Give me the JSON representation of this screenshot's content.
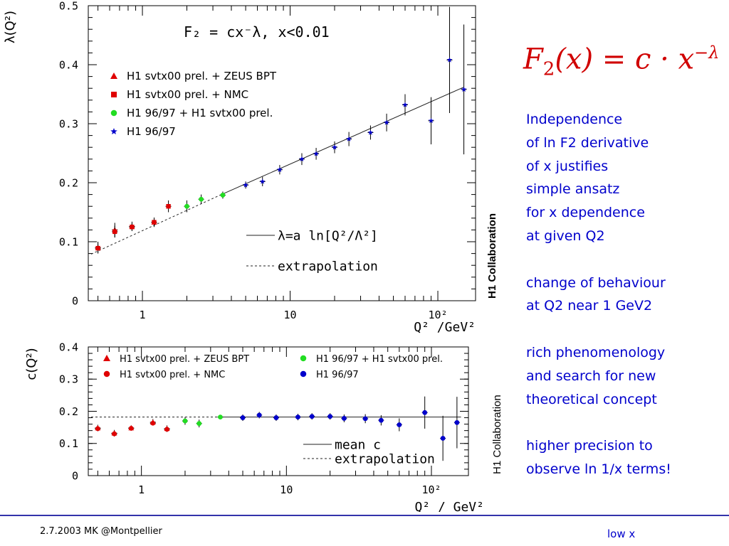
{
  "formula": {
    "lhs": "F",
    "sub": "2",
    "rhs": "(x) = c · x",
    "sup": "−λ"
  },
  "notes": [
    "Independence",
    "of ln F2 derivative",
    "of x justifies",
    "simple ansatz",
    "for x dependence",
    "at given Q2",
    "",
    "change of behaviour",
    "at Q2 near 1 GeV2",
    "",
    "rich phenomenology",
    "and search for new",
    "theoretical concept",
    "",
    "higher precision to",
    "observe ln 1/x terms!"
  ],
  "collaboration": {
    "top": "H1 Collaboration",
    "bottom": "H1 Collaboration"
  },
  "footer": {
    "left": "2.7.2003 MK @Montpellier",
    "right": "low x"
  },
  "chart_data": [
    {
      "type": "scatter",
      "title": "F₂ = cx⁻λ,  x<0.01",
      "ylabel": "λ(Q²)",
      "xlabel": "Q² /GeV²",
      "xscale": "log",
      "xlim": [
        0.43,
        180
      ],
      "ylim": [
        0,
        0.5
      ],
      "xticks": [
        {
          "v": 1,
          "t": "1"
        },
        {
          "v": 10,
          "t": "10"
        },
        {
          "v": 100,
          "t": "10²"
        }
      ],
      "yticks": [
        {
          "v": 0,
          "t": "0"
        },
        {
          "v": 0.1,
          "t": "0.1"
        },
        {
          "v": 0.2,
          "t": "0.2"
        },
        {
          "v": 0.3,
          "t": "0.3"
        },
        {
          "v": 0.4,
          "t": "0.4"
        },
        {
          "v": 0.5,
          "t": "0.5"
        }
      ],
      "legend": [
        {
          "label": "H1 svtx00 prel. + ZEUS BPT",
          "marker": "triangle",
          "color": "#e00000"
        },
        {
          "label": "H1 svtx00 prel. + NMC",
          "marker": "square",
          "color": "#e00000"
        },
        {
          "label": "H1 96/97 + H1 svtx00 prel.",
          "marker": "circle",
          "color": "#22dd22"
        },
        {
          "label": "H1 96/97",
          "marker": "star",
          "color": "#0000cc"
        }
      ],
      "series": [
        {
          "name": "H1 svtx00 prel. + ZEUS BPT",
          "marker": "triangle",
          "color": "#e00000",
          "points": [
            [
              0.5,
              0.09,
              0.01
            ],
            [
              0.65,
              0.12,
              0.012
            ],
            [
              0.85,
              0.126,
              0.008
            ],
            [
              1.2,
              0.133,
              0.008
            ]
          ]
        },
        {
          "name": "H1 svtx00 prel. + NMC",
          "marker": "square",
          "color": "#e00000",
          "points": [
            [
              0.5,
              0.089,
              0.008
            ],
            [
              0.65,
              0.117,
              0.01
            ],
            [
              0.85,
              0.125,
              0.006
            ],
            [
              1.2,
              0.133,
              0.006
            ],
            [
              1.5,
              0.16,
              0.01
            ]
          ]
        },
        {
          "name": "H1 96/97 + H1 svtx00 prel.",
          "marker": "circle",
          "color": "#22dd22",
          "points": [
            [
              2.0,
              0.16,
              0.01
            ],
            [
              2.5,
              0.172,
              0.008
            ],
            [
              3.5,
              0.179,
              0.006
            ]
          ]
        },
        {
          "name": "H1 96/97",
          "marker": "star",
          "color": "#0000cc",
          "points": [
            [
              5.0,
              0.196,
              0.006
            ],
            [
              6.5,
              0.202,
              0.008
            ],
            [
              8.5,
              0.222,
              0.008
            ],
            [
              12,
              0.24,
              0.01
            ],
            [
              15,
              0.249,
              0.01
            ],
            [
              20,
              0.26,
              0.01
            ],
            [
              25,
              0.274,
              0.012
            ],
            [
              35,
              0.285,
              0.012
            ],
            [
              45,
              0.302,
              0.015
            ],
            [
              60,
              0.332,
              0.018
            ],
            [
              90,
              0.305,
              0.04
            ],
            [
              120,
              0.408,
              0.09
            ],
            [
              150,
              0.358,
              0.11
            ]
          ]
        }
      ],
      "fit": {
        "label": "λ=a ln[Q²/Λ²]",
        "points": [
          [
            3.5,
            0.181
          ],
          [
            150,
            0.362
          ]
        ]
      },
      "extrapolation": {
        "label": "extrapolation",
        "points": [
          [
            0.45,
            0.079
          ],
          [
            3.5,
            0.181
          ]
        ]
      }
    },
    {
      "type": "scatter",
      "ylabel": "c(Q²)",
      "xlabel": "Q² / GeV²",
      "xscale": "log",
      "xlim": [
        0.43,
        180
      ],
      "ylim": [
        0,
        0.4
      ],
      "xticks": [
        {
          "v": 1,
          "t": "1"
        },
        {
          "v": 10,
          "t": "10"
        },
        {
          "v": 100,
          "t": "10²"
        }
      ],
      "yticks": [
        {
          "v": 0,
          "t": "0"
        },
        {
          "v": 0.1,
          "t": "0.1"
        },
        {
          "v": 0.2,
          "t": "0.2"
        },
        {
          "v": 0.3,
          "t": "0.3"
        },
        {
          "v": 0.4,
          "t": "0.4"
        }
      ],
      "legend": [
        {
          "label": "H1 svtx00 prel. + ZEUS BPT",
          "marker": "triangle",
          "color": "#e00000"
        },
        {
          "label": "H1 svtx00 prel. + NMC",
          "marker": "circle",
          "color": "#e00000"
        },
        {
          "label": "H1 96/97 + H1 svtx00 prel.",
          "marker": "circle",
          "color": "#22dd22"
        },
        {
          "label": "H1 96/97",
          "marker": "circle",
          "color": "#0000cc"
        }
      ],
      "series": [
        {
          "name": "H1 svtx00 prel. + ZEUS BPT",
          "marker": "triangle",
          "color": "#e00000",
          "points": [
            [
              0.5,
              0.148,
              0.01
            ],
            [
              0.65,
              0.132,
              0.01
            ],
            [
              0.85,
              0.148,
              0.008
            ],
            [
              1.2,
              0.166,
              0.01
            ],
            [
              1.5,
              0.146,
              0.01
            ]
          ]
        },
        {
          "name": "H1 svtx00 prel. + NMC",
          "marker": "circle",
          "color": "#e00000",
          "points": [
            [
              0.5,
              0.146,
              0.006
            ],
            [
              0.65,
              0.13,
              0.008
            ],
            [
              0.85,
              0.147,
              0.006
            ],
            [
              1.2,
              0.163,
              0.006
            ],
            [
              1.5,
              0.144,
              0.008
            ]
          ]
        },
        {
          "name": "H1 96/97 + H1 svtx00 prel.",
          "marker": "circle",
          "color": "#22dd22",
          "points": [
            [
              2.0,
              0.17,
              0.012
            ],
            [
              2.5,
              0.162,
              0.012
            ],
            [
              3.5,
              0.182,
              0.006
            ]
          ]
        },
        {
          "name": "H1 96/97",
          "marker": "circle",
          "color": "#0000cc",
          "points": [
            [
              5.0,
              0.18,
              0.01
            ],
            [
              6.5,
              0.188,
              0.01
            ],
            [
              8.5,
              0.18,
              0.01
            ],
            [
              12,
              0.182,
              0.01
            ],
            [
              15,
              0.184,
              0.01
            ],
            [
              20,
              0.184,
              0.01
            ],
            [
              25,
              0.178,
              0.012
            ],
            [
              35,
              0.177,
              0.014
            ],
            [
              45,
              0.172,
              0.016
            ],
            [
              60,
              0.158,
              0.02
            ],
            [
              90,
              0.196,
              0.05
            ],
            [
              120,
              0.116,
              0.07
            ],
            [
              150,
              0.165,
              0.08
            ]
          ]
        }
      ],
      "fit": {
        "label": "mean c",
        "points": [
          [
            3.5,
            0.182
          ],
          [
            160,
            0.182
          ]
        ]
      },
      "extrapolation": {
        "label": "extrapolation",
        "points": [
          [
            0.45,
            0.182
          ],
          [
            3.5,
            0.182
          ]
        ]
      }
    }
  ]
}
